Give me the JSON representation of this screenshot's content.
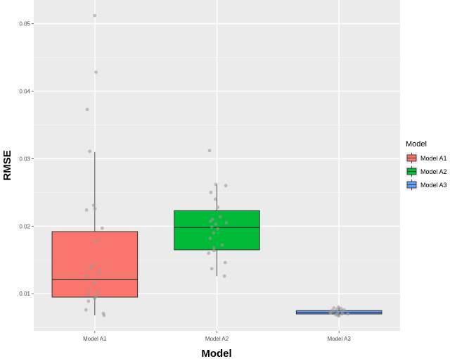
{
  "chart_data": {
    "type": "box",
    "xlabel": "Model",
    "ylabel": "RMSE",
    "categories": [
      "Model A1",
      "Model A2",
      "Model A3"
    ],
    "ylim": [
      0.0045,
      0.0535
    ],
    "yticks": [
      0.01,
      0.02,
      0.03,
      0.04,
      0.05
    ],
    "ytick_labels": [
      "0.01",
      "0.02",
      "0.03",
      "0.04",
      "0.05"
    ],
    "grid": true,
    "legend": {
      "title": "Model",
      "position": "right",
      "entries": [
        "Model A1",
        "Model A2",
        "Model A3"
      ]
    },
    "colors": {
      "Model A1": "#f8766d",
      "Model A2": "#00ba38",
      "Model A3": "#619cff",
      "panel": "#ebebeb",
      "points": "#9a9a9a"
    },
    "boxes": [
      {
        "name": "Model A1",
        "whisker_low": 0.0068,
        "q1": 0.0095,
        "median": 0.0121,
        "q3": 0.0192,
        "whisker_high": 0.031
      },
      {
        "name": "Model A2",
        "whisker_low": 0.0126,
        "q1": 0.0165,
        "median": 0.0198,
        "q3": 0.0223,
        "whisker_high": 0.0262
      },
      {
        "name": "Model A3",
        "whisker_low": 0.0067,
        "q1": 0.007,
        "median": 0.0072,
        "q3": 0.0075,
        "whisker_high": 0.008
      }
    ],
    "points": [
      {
        "name": "Model A1",
        "y": [
          0.0512,
          0.0428,
          0.0373,
          0.0311,
          0.0231,
          0.0226,
          0.0224,
          0.0197,
          0.0178,
          0.0141,
          0.0138,
          0.0135,
          0.0129,
          0.0126,
          0.0116,
          0.0106,
          0.0101,
          0.0098,
          0.0096,
          0.0093,
          0.0089,
          0.0076,
          0.0071,
          0.0068
        ]
      },
      {
        "name": "Model A2",
        "y": [
          0.0312,
          0.0262,
          0.026,
          0.025,
          0.024,
          0.0228,
          0.0214,
          0.021,
          0.0207,
          0.0205,
          0.0203,
          0.0199,
          0.0196,
          0.019,
          0.0182,
          0.0172,
          0.0168,
          0.0164,
          0.016,
          0.0146,
          0.0137,
          0.0126
        ]
      },
      {
        "name": "Model A3",
        "y": [
          0.008,
          0.0079,
          0.0078,
          0.0077,
          0.0076,
          0.0075,
          0.0075,
          0.0074,
          0.0073,
          0.0072,
          0.0072,
          0.0071,
          0.0071,
          0.007,
          0.007,
          0.0069,
          0.0068,
          0.0067
        ]
      }
    ]
  }
}
